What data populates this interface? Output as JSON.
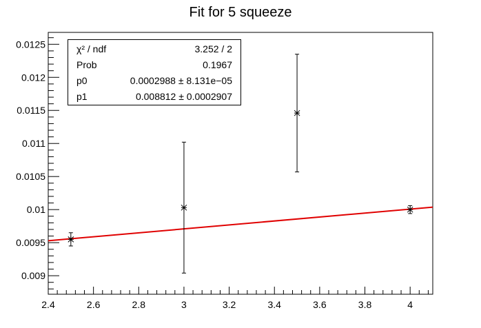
{
  "chart_data": {
    "type": "scatter",
    "title": "Fit for 5 squeeze",
    "xlabel": "",
    "ylabel": "",
    "xlim": [
      2.4,
      4.1
    ],
    "ylim": [
      0.00872,
      0.01268
    ],
    "x_ticks": [
      "2.4",
      "2.6",
      "2.8",
      "3",
      "3.2",
      "3.4",
      "3.6",
      "3.8",
      "4"
    ],
    "y_ticks": [
      "0.009",
      "0.0095",
      "0.01",
      "0.0105",
      "0.011",
      "0.0115",
      "0.012",
      "0.0125"
    ],
    "grid": false,
    "series": [
      {
        "marker": "asterisk",
        "color": "#000000",
        "points": [
          {
            "x": 2.5,
            "y": 0.00955,
            "err": 0.0001
          },
          {
            "x": 3.0,
            "y": 0.01003,
            "err": 0.00099
          },
          {
            "x": 3.5,
            "y": 0.01146,
            "err": 0.00089
          },
          {
            "x": 4.0,
            "y": 0.01,
            "err": 6e-05
          }
        ]
      }
    ],
    "fit": {
      "type": "linear",
      "color": "#e00000",
      "p0": 0.0002988,
      "p1": 0.008812,
      "x_range": [
        2.4,
        4.1
      ]
    }
  },
  "stats": {
    "rows": [
      {
        "label": "χ² / ndf",
        "value": "3.252 / 2"
      },
      {
        "label": "Prob",
        "value": "0.1967"
      },
      {
        "label": "p0",
        "value": "0.0002988 ± 8.131e−05"
      },
      {
        "label": "p1",
        "value": "0.008812 ± 0.0002907"
      }
    ]
  }
}
